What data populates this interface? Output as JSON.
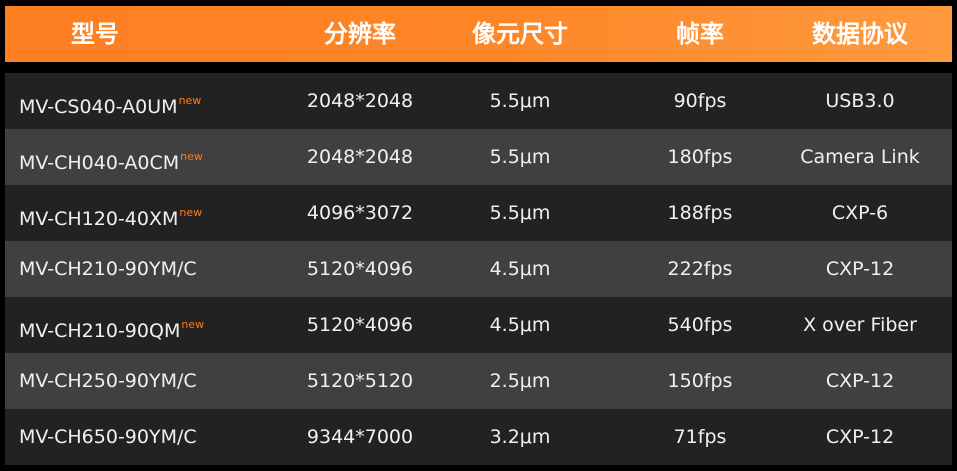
{
  "header": [
    "型号",
    "分辨率",
    "像元尺寸",
    "帧率",
    "数据协议"
  ],
  "new_label": "new",
  "rows": [
    {
      "model": "MV-CS040-A0UM",
      "is_new": true,
      "resolution": "2048*2048",
      "pixel": "5.5μm",
      "fps": "90fps",
      "protocol": "USB3.0"
    },
    {
      "model": "MV-CH040-A0CM",
      "is_new": true,
      "resolution": "2048*2048",
      "pixel": "5.5μm",
      "fps": "180fps",
      "protocol": "Camera Link"
    },
    {
      "model": "MV-CH120-40XM",
      "is_new": true,
      "resolution": "4096*3072",
      "pixel": "5.5μm",
      "fps": "188fps",
      "protocol": "CXP-6"
    },
    {
      "model": "MV-CH210-90YM/C",
      "is_new": false,
      "resolution": "5120*4096",
      "pixel": "4.5μm",
      "fps": "222fps",
      "protocol": "CXP-12"
    },
    {
      "model": "MV-CH210-90QM",
      "is_new": true,
      "resolution": "5120*4096",
      "pixel": "4.5μm",
      "fps": "540fps",
      "protocol": "X over Fiber"
    },
    {
      "model": "MV-CH250-90YM/C",
      "is_new": false,
      "resolution": "5120*5120",
      "pixel": "2.5μm",
      "fps": "150fps",
      "protocol": "CXP-12"
    },
    {
      "model": "MV-CH650-90YM/C",
      "is_new": false,
      "resolution": "9344*7000",
      "pixel": "3.2μm",
      "fps": "71fps",
      "protocol": "CXP-12"
    }
  ],
  "colors": {
    "header": "#fe7f22",
    "accent_new": "#ff7a1a",
    "row_dark": "#222222",
    "row_light": "#404040"
  }
}
